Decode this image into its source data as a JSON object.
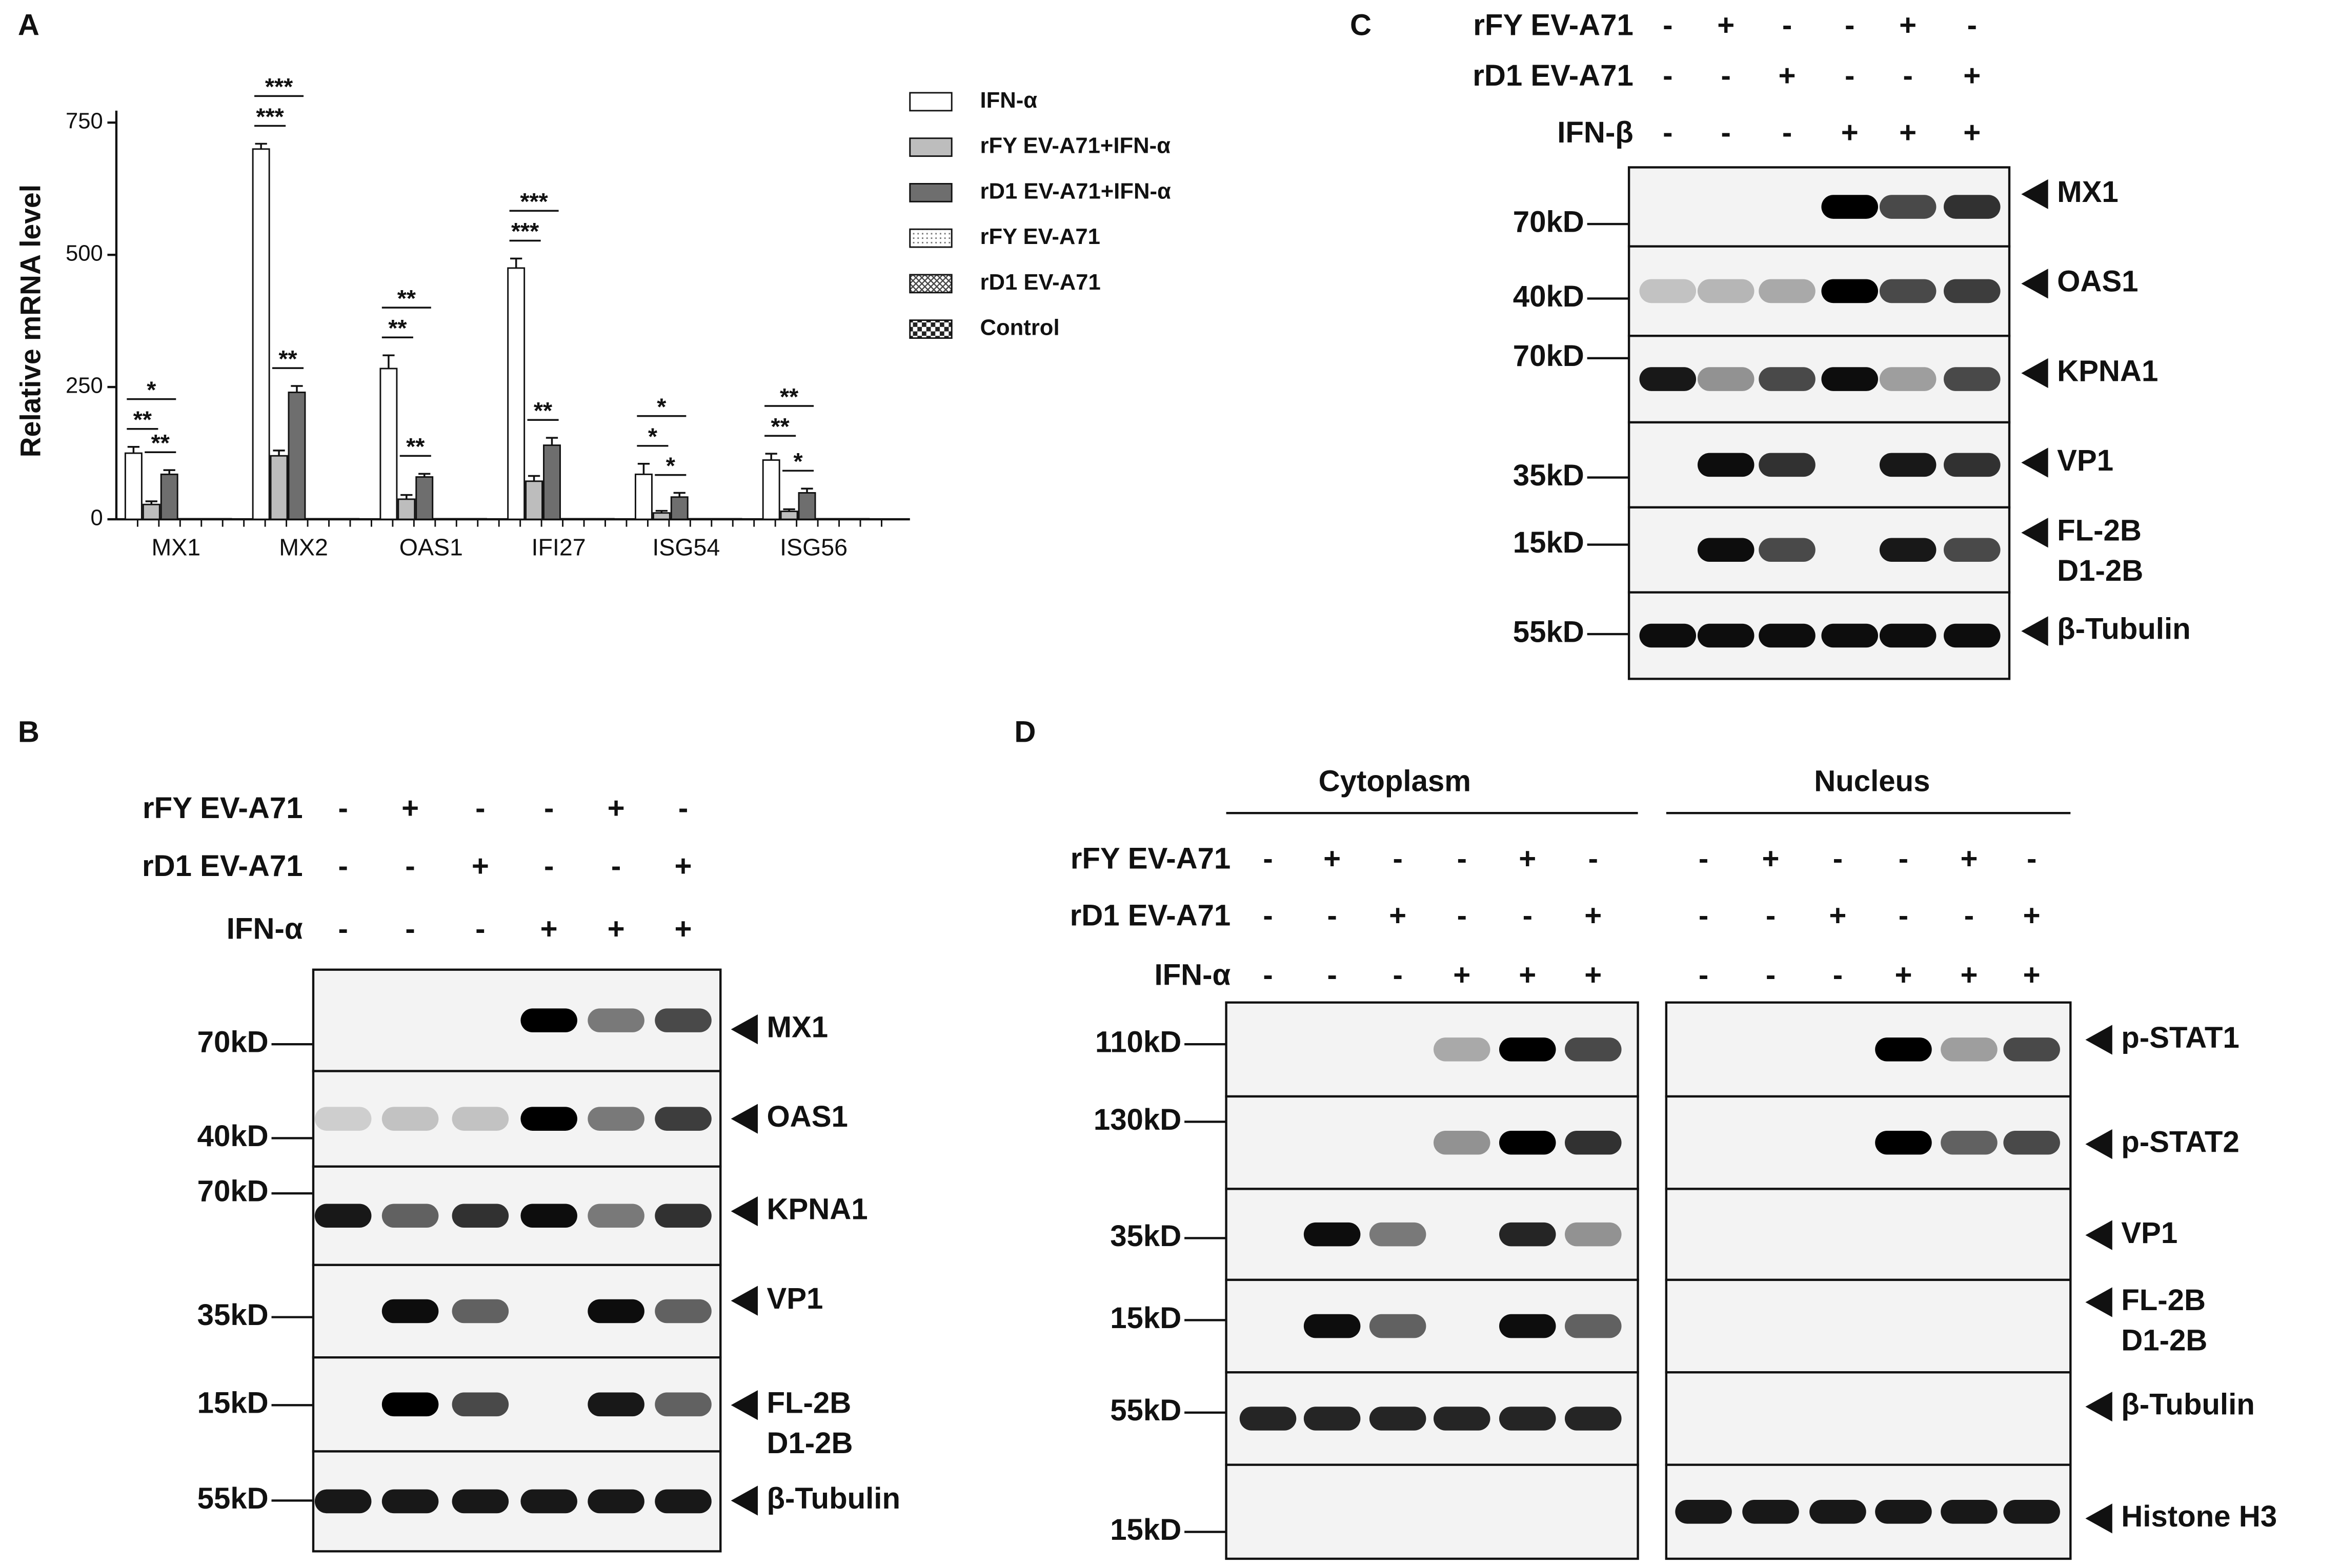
{
  "chart_data": {
    "type": "bar",
    "panel_label": "A",
    "y_label": "Relative mRNA level",
    "categories": [
      "MX1",
      "MX2",
      "OAS1",
      "IFI27",
      "ISG54",
      "ISG56"
    ],
    "series": [
      {
        "name": "IFN-α",
        "color": "#ffffff",
        "pattern": "solid",
        "values": [
          125,
          700,
          285,
          475,
          85,
          112
        ],
        "errors": [
          12,
          10,
          25,
          18,
          20,
          12
        ]
      },
      {
        "name": "rFY EV-A71+IFN-α",
        "color": "#bdbdbd",
        "pattern": "solid",
        "values": [
          28,
          120,
          38,
          72,
          12,
          15
        ],
        "errors": [
          6,
          10,
          8,
          10,
          4,
          4
        ]
      },
      {
        "name": "rD1 EV-A71+IFN-α",
        "color": "#6e6e6e",
        "pattern": "solid",
        "values": [
          85,
          240,
          80,
          140,
          42,
          50
        ],
        "errors": [
          8,
          12,
          6,
          14,
          8,
          8
        ]
      },
      {
        "name": "rFY EV-A71",
        "color": "#ffffff",
        "pattern": "dotted",
        "values": [
          1,
          1,
          1,
          1,
          1,
          1
        ]
      },
      {
        "name": "rD1 EV-A71",
        "color": "#ffffff",
        "pattern": "crosshatch",
        "values": [
          1,
          1,
          1,
          1,
          1,
          1
        ]
      },
      {
        "name": "Control",
        "color": "#ffffff",
        "pattern": "checker",
        "values": [
          1,
          1,
          1,
          1,
          1,
          1
        ]
      }
    ],
    "ylim": [
      0,
      750
    ],
    "yticks": [
      0,
      250,
      500,
      750
    ],
    "significance": [
      [
        "*",
        "**",
        "**"
      ],
      [
        "***",
        "***",
        "**"
      ],
      [
        "**",
        "**",
        "**"
      ],
      [
        "***",
        "***",
        "**"
      ],
      [
        "*",
        "*",
        "*"
      ],
      [
        "**",
        "**",
        "*"
      ]
    ]
  },
  "panel_b": {
    "label": "B",
    "conditions": [
      {
        "name": "rFY EV-A71",
        "lanes": [
          "-",
          "+",
          "-",
          "-",
          "+",
          "-"
        ]
      },
      {
        "name": "rD1 EV-A71",
        "lanes": [
          "-",
          "-",
          "+",
          "-",
          "-",
          "+"
        ]
      },
      {
        "name": "IFN-α",
        "lanes": [
          "-",
          "-",
          "-",
          "+",
          "+",
          "+"
        ]
      }
    ],
    "blots": [
      {
        "marker": "70kD",
        "target": [
          "MX1"
        ]
      },
      {
        "marker": "40kD",
        "target": [
          "OAS1"
        ]
      },
      {
        "marker": "70kD",
        "target": [
          "KPNA1"
        ]
      },
      {
        "marker": "35kD",
        "target": [
          "VP1"
        ]
      },
      {
        "marker": "15kD",
        "target": [
          "FL-2B",
          "D1-2B"
        ]
      },
      {
        "marker": "55kD",
        "target": [
          "β-Tubulin"
        ]
      }
    ]
  },
  "panel_c": {
    "label": "C",
    "conditions": [
      {
        "name": "rFY EV-A71",
        "lanes": [
          "-",
          "+",
          "-",
          "-",
          "+",
          "-"
        ]
      },
      {
        "name": "rD1 EV-A71",
        "lanes": [
          "-",
          "-",
          "+",
          "-",
          "-",
          "+"
        ]
      },
      {
        "name": "IFN-β",
        "lanes": [
          "-",
          "-",
          "-",
          "+",
          "+",
          "+"
        ]
      }
    ],
    "blots": [
      {
        "marker": "70kD",
        "target": [
          "MX1"
        ]
      },
      {
        "marker": "40kD",
        "target": [
          "OAS1"
        ]
      },
      {
        "marker": "70kD",
        "target": [
          "KPNA1"
        ]
      },
      {
        "marker": "35kD",
        "target": [
          "VP1"
        ]
      },
      {
        "marker": "15kD",
        "target": [
          "FL-2B",
          "D1-2B"
        ]
      },
      {
        "marker": "55kD",
        "target": [
          "β-Tubulin"
        ]
      }
    ]
  },
  "panel_d": {
    "label": "D",
    "sections": [
      "Cytoplasm",
      "Nucleus"
    ],
    "conditions": [
      {
        "name": "rFY EV-A71",
        "lanes": [
          "-",
          "+",
          "-",
          "-",
          "+",
          "-",
          "-",
          "+",
          "-",
          "-",
          "+",
          "-"
        ]
      },
      {
        "name": "rD1 EV-A71",
        "lanes": [
          "-",
          "-",
          "+",
          "-",
          "-",
          "+",
          "-",
          "-",
          "+",
          "-",
          "-",
          "+"
        ]
      },
      {
        "name": "IFN-α",
        "lanes": [
          "-",
          "-",
          "-",
          "+",
          "+",
          "+",
          "-",
          "-",
          "-",
          "+",
          "+",
          "+"
        ]
      }
    ],
    "blots": [
      {
        "marker": "110kD",
        "target": [
          "p-STAT1"
        ]
      },
      {
        "marker": "130kD",
        "target": [
          "p-STAT2"
        ]
      },
      {
        "marker": "35kD",
        "target": [
          "VP1"
        ]
      },
      {
        "marker": "15kD",
        "target": [
          "FL-2B",
          "D1-2B"
        ]
      },
      {
        "marker": "55kD",
        "target": [
          "β-Tubulin"
        ]
      },
      {
        "marker": "15kD",
        "target": [
          "Histone H3"
        ]
      }
    ]
  }
}
